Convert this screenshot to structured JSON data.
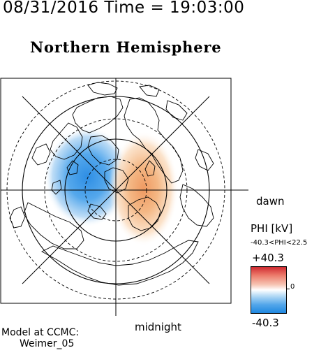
{
  "header": {
    "timestamp": "08/31/2016 Time = 19:03:00",
    "title": "Northern Hemisphere"
  },
  "map": {
    "projection": "polar stereographic, north pole centered",
    "direction_labels": {
      "right": "dawn",
      "bottom": "midnight"
    },
    "potential_pattern": {
      "negative_cell": "dusk/pre-midnight sector, blue",
      "positive_cell": "dawn sector, red/orange"
    }
  },
  "legend": {
    "title": "PHI [kV]",
    "range_text": "-40.3<PHI<22.5",
    "max_label": "+40.3",
    "zero_label": "0",
    "min_label": "-40.3",
    "colors": {
      "max": "#d02a30",
      "mid": "#ffffff",
      "min": "#1f87e0"
    }
  },
  "credit": {
    "line1": "Model at CCMC:",
    "line2": "Weimer_05"
  }
}
